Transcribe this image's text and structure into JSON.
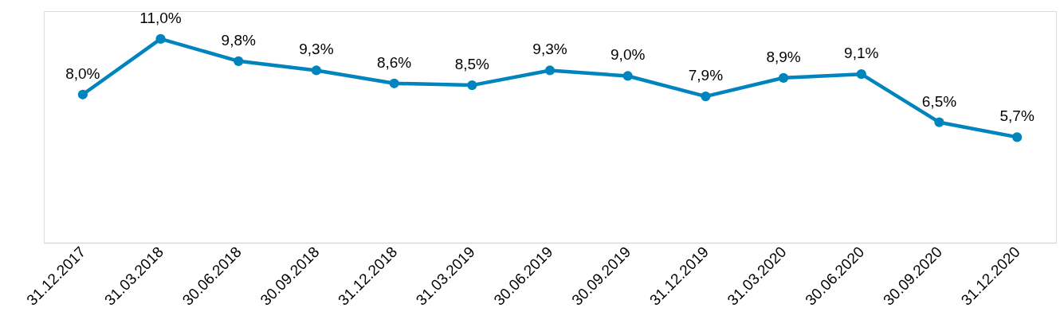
{
  "chart_data": {
    "type": "line",
    "categories": [
      "31.12.2017",
      "31.03.2018",
      "30.06.2018",
      "30.09.2018",
      "31.12.2018",
      "31.03.2019",
      "30.06.2019",
      "30.09.2019",
      "31.12.2019",
      "31.03.2020",
      "30.06.2020",
      "30.09.2020",
      "31.12.2020"
    ],
    "series": [
      {
        "color": "#0084be",
        "values": [
          8.0,
          11.0,
          9.8,
          9.3,
          8.6,
          8.5,
          9.3,
          9.0,
          7.9,
          8.9,
          9.1,
          6.5,
          5.7
        ],
        "value_labels": [
          "8,0%",
          "11,0%",
          "9,8%",
          "9,3%",
          "8,6%",
          "8,5%",
          "9,3%",
          "9,0%",
          "7,9%",
          "8,9%",
          "9,1%",
          "6,5%",
          "5,7%"
        ]
      }
    ],
    "ylim": [
      0,
      12.5
    ],
    "tick_labels": "x",
    "marker": "circle",
    "line_style": "solid",
    "grid": false
  }
}
